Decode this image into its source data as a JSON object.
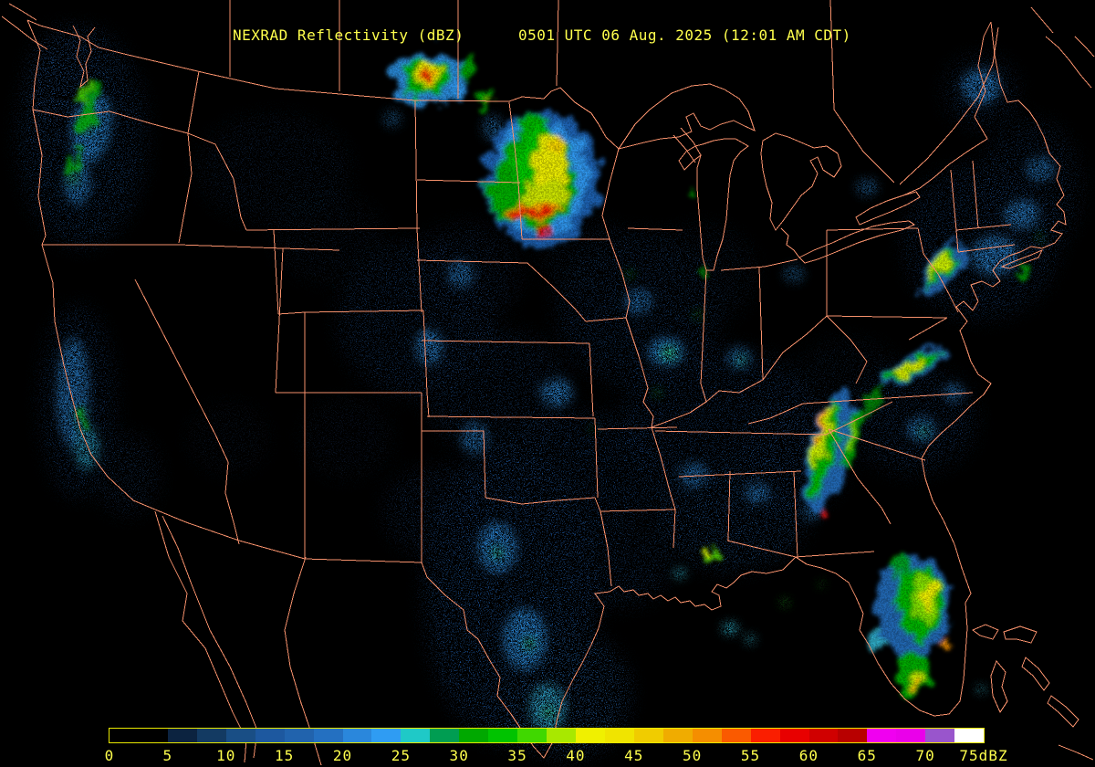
{
  "header": {
    "title": "NEXRAD Reflectivity (dBZ)",
    "timestamp": "0501 UTC 06 Aug. 2025 (12:01 AM CDT)"
  },
  "colorbar": {
    "unit": "dBZ",
    "range_min": 0,
    "range_max": 75,
    "cell_step_dbz": 2.5,
    "ticks": [
      "0",
      "5",
      "10",
      "15",
      "20",
      "25",
      "30",
      "35",
      "40",
      "45",
      "50",
      "55",
      "60",
      "65",
      "70",
      "75dBZ"
    ],
    "cells": [
      "#000000",
      "#000000",
      "#0c2340",
      "#133a62",
      "#194e85",
      "#1d589f",
      "#2163ad",
      "#2470c1",
      "#2a87dc",
      "#2f9cf3",
      "#1fc9c7",
      "#009d52",
      "#00a800",
      "#00c300",
      "#40d800",
      "#a8e800",
      "#f0f000",
      "#f0e400",
      "#f0cc00",
      "#f0ac00",
      "#f58e00",
      "#fa5a00",
      "#fa1e00",
      "#e80000",
      "#d00000",
      "#b80000",
      "#f000f0",
      "#ea00ea",
      "#9955cc",
      "#ffffff"
    ],
    "border_color": "#e8e800",
    "label_color": "#ffff4d"
  },
  "map": {
    "background": "#000000",
    "boundary_color": "#f5906b",
    "echoes": {
      "format": "[cx, cy, rx, ry, rotate_deg, color, opacity]",
      "fields": [
        [
          90,
          150,
          70,
          120,
          0,
          "#1d5aa4",
          0.8
        ],
        [
          70,
          90,
          40,
          60,
          0,
          "#2470c1",
          0.55
        ],
        [
          85,
          440,
          40,
          105,
          0,
          "#1d5aa4",
          0.75
        ],
        [
          140,
          520,
          35,
          45,
          0,
          "#1a508c",
          0.6
        ],
        [
          300,
          185,
          85,
          60,
          0,
          "#16406e",
          0.55
        ],
        [
          360,
          260,
          60,
          50,
          0,
          "#16406e",
          0.45
        ],
        [
          455,
          350,
          85,
          85,
          0,
          "#1d5aa4",
          0.65
        ],
        [
          510,
          300,
          60,
          55,
          0,
          "#1d5aa4",
          0.5
        ],
        [
          545,
          430,
          80,
          70,
          0,
          "#1d5aa4",
          0.6
        ],
        [
          560,
          650,
          95,
          165,
          0,
          "#1f63b4",
          0.85
        ],
        [
          620,
          760,
          70,
          70,
          0,
          "#2470c1",
          0.8
        ],
        [
          480,
          560,
          60,
          50,
          0,
          "#1d5aa4",
          0.55
        ],
        [
          640,
          520,
          85,
          70,
          0,
          "#1d5aa4",
          0.7
        ],
        [
          700,
          340,
          90,
          85,
          0,
          "#1d5aa4",
          0.7
        ],
        [
          640,
          280,
          50,
          45,
          0,
          "#16406e",
          0.5
        ],
        [
          790,
          460,
          110,
          80,
          0,
          "#1d5aa4",
          0.7
        ],
        [
          800,
          565,
          85,
          60,
          0,
          "#2065b0",
          0.8
        ],
        [
          870,
          500,
          60,
          60,
          0,
          "#1d5aa4",
          0.6
        ],
        [
          680,
          620,
          55,
          45,
          0,
          "#1d5aa4",
          0.6
        ],
        [
          770,
          300,
          60,
          55,
          0,
          "#16406e",
          0.5
        ],
        [
          930,
          420,
          60,
          50,
          0,
          "#16406e",
          0.5
        ],
        [
          1000,
          460,
          70,
          60,
          0,
          "#1d5aa4",
          0.65
        ],
        [
          1075,
          265,
          85,
          85,
          0,
          "#1d5aa4",
          0.7
        ],
        [
          1130,
          205,
          55,
          75,
          0,
          "#1d5aa4",
          0.6
        ],
        [
          1075,
          100,
          40,
          40,
          0,
          "#1d5aa4",
          0.65
        ],
        [
          380,
          480,
          50,
          45,
          0,
          "#16406e",
          0.4
        ],
        [
          250,
          480,
          45,
          40,
          0,
          "#16406e",
          0.35
        ]
      ],
      "clumps": [
        [
          100,
          140,
          22,
          40,
          10,
          "#2e93e8",
          0.9
        ],
        [
          85,
          200,
          15,
          25,
          0,
          "#2e93e8",
          0.8
        ],
        [
          80,
          430,
          18,
          60,
          0,
          "#2e93e8",
          0.8
        ],
        [
          95,
          490,
          14,
          25,
          0,
          "#35c0e8",
          0.7
        ],
        [
          470,
          380,
          16,
          20,
          0,
          "#2e93e8",
          0.8
        ],
        [
          505,
          300,
          15,
          15,
          0,
          "#2e93e8",
          0.7
        ],
        [
          610,
          430,
          18,
          16,
          0,
          "#2e93e8",
          0.8
        ],
        [
          520,
          480,
          15,
          18,
          0,
          "#2e93e8",
          0.7
        ],
        [
          545,
          600,
          22,
          28,
          0,
          "#2e93e8",
          0.85
        ],
        [
          575,
          700,
          24,
          34,
          0,
          "#2e93e8",
          0.9
        ],
        [
          600,
          775,
          20,
          26,
          0,
          "#35c0e8",
          0.85
        ],
        [
          730,
          385,
          20,
          16,
          0,
          "#2e93e8",
          0.9
        ],
        [
          733,
          388,
          10,
          8,
          0,
          "#38d0f0",
          0.9
        ],
        [
          810,
          392,
          13,
          12,
          0,
          "#2e93e8",
          0.8
        ],
        [
          700,
          330,
          16,
          14,
          0,
          "#2e93e8",
          0.7
        ],
        [
          760,
          520,
          16,
          14,
          0,
          "#2e93e8",
          0.7
        ],
        [
          830,
          540,
          14,
          12,
          0,
          "#2e93e8",
          0.7
        ],
        [
          890,
          560,
          12,
          10,
          0,
          "#2e93e8",
          0.6
        ],
        [
          1010,
          470,
          16,
          14,
          0,
          "#2e93e8",
          0.8
        ],
        [
          1045,
          430,
          12,
          10,
          0,
          "#2e93e8",
          0.7
        ],
        [
          1090,
          280,
          26,
          22,
          0,
          "#2e93e8",
          0.85
        ],
        [
          1120,
          235,
          20,
          16,
          0,
          "#2e93e8",
          0.8
        ],
        [
          1140,
          185,
          16,
          14,
          0,
          "#2e93e8",
          0.7
        ],
        [
          1075,
          95,
          22,
          20,
          0,
          "#2e93e8",
          0.85
        ],
        [
          950,
          205,
          12,
          10,
          0,
          "#2e93e8",
          0.6
        ],
        [
          870,
          300,
          12,
          10,
          0,
          "#2e93e8",
          0.5
        ],
        [
          800,
          688,
          9,
          7,
          0,
          "#38d0f0",
          0.9
        ],
        [
          822,
          700,
          6,
          5,
          0,
          "#38d0f0",
          0.85
        ],
        [
          1075,
          755,
          5,
          4,
          0,
          "#38d0f0",
          0.9
        ],
        [
          745,
          628,
          7,
          6,
          0,
          "#38d0f0",
          0.8
        ],
        [
          540,
          140,
          12,
          14,
          0,
          "#2e93e8",
          0.6
        ],
        [
          430,
          130,
          10,
          10,
          0,
          "#2e93e8",
          0.5
        ]
      ],
      "specks": [
        [
          95,
          135,
          6,
          10,
          0,
          "#20c020",
          0.9
        ],
        [
          80,
          195,
          5,
          7,
          0,
          "#20c020",
          0.8
        ],
        [
          88,
          455,
          5,
          9,
          0,
          "#20c020",
          0.8
        ],
        [
          733,
          386,
          6,
          5,
          0,
          "#20c020",
          0.9
        ],
        [
          812,
          394,
          4,
          4,
          0,
          "#20c020",
          0.8
        ],
        [
          1012,
          472,
          5,
          4,
          0,
          "#20c020",
          0.8
        ],
        [
          545,
          605,
          5,
          6,
          0,
          "#20c020",
          0.8
        ],
        [
          580,
          705,
          6,
          6,
          0,
          "#20c020",
          0.8
        ],
        [
          601,
          780,
          5,
          5,
          0,
          "#20c020",
          0.8
        ],
        [
          765,
          345,
          4,
          4,
          0,
          "#20c020",
          0.8
        ],
        [
          860,
          660,
          4,
          4,
          0,
          "#28cc28",
          0.9
        ],
        [
          900,
          640,
          3,
          3,
          0,
          "#28cc28",
          0.8
        ],
        [
          690,
          300,
          4,
          4,
          0,
          "#20c020",
          0.7
        ],
        [
          720,
          430,
          4,
          4,
          0,
          "#20c020",
          0.7
        ],
        [
          650,
          470,
          3,
          3,
          0,
          "#20c020",
          0.7
        ],
        [
          1140,
          260,
          3,
          5,
          0,
          "#20c020",
          0.7
        ]
      ],
      "cores": [
        [
          594,
          196,
          64,
          74,
          0,
          "#1f63b4",
          0.95
        ],
        [
          592,
          195,
          52,
          64,
          0,
          "#2e93e8",
          1
        ],
        [
          560,
          208,
          26,
          36,
          0,
          "#00a800",
          1
        ],
        [
          590,
          196,
          42,
          56,
          0,
          "#00a800",
          1
        ],
        [
          585,
          140,
          18,
          16,
          0,
          "#00b000",
          1
        ],
        [
          594,
          188,
          30,
          48,
          0,
          "#00c300",
          1
        ],
        [
          604,
          185,
          20,
          40,
          0,
          "#e8e800",
          1
        ],
        [
          598,
          215,
          24,
          16,
          0,
          "#c8e000",
          1
        ],
        [
          609,
          160,
          7,
          12,
          0,
          "#f0d000",
          1
        ],
        [
          585,
          233,
          30,
          8,
          -6,
          "#f0a000",
          1
        ],
        [
          583,
          234,
          24,
          5,
          -6,
          "#e81800",
          1
        ],
        [
          568,
          238,
          10,
          4,
          10,
          "#e81800",
          1
        ],
        [
          597,
          251,
          5,
          9,
          0,
          "#d00000",
          1
        ],
        [
          470,
          86,
          40,
          30,
          0,
          "#2e93e8",
          0.9
        ],
        [
          466,
          84,
          26,
          21,
          0,
          "#00b000",
          1
        ],
        [
          469,
          80,
          11,
          12,
          0,
          "#e8e800",
          1
        ],
        [
          468,
          83,
          6,
          6,
          0,
          "#f09000",
          1
        ],
        [
          467,
          84,
          3,
          3,
          0,
          "#e00000",
          1
        ],
        [
          515,
          73,
          9,
          10,
          0,
          "#00a800",
          0.9
        ],
        [
          532,
          110,
          9,
          8,
          0,
          "#00a800",
          0.9
        ],
        [
          536,
          112,
          4,
          4,
          0,
          "#b0e000",
          0.9
        ],
        [
          500,
          95,
          7,
          7,
          0,
          "#2e93e8",
          0.8
        ],
        [
          908,
          495,
          22,
          68,
          14,
          "#2470c1",
          0.9
        ],
        [
          904,
          490,
          13,
          56,
          14,
          "#00b000",
          1
        ],
        [
          901,
          477,
          6,
          36,
          14,
          "#c8e800",
          1
        ],
        [
          900,
          468,
          3,
          20,
          14,
          "#f0a000",
          1
        ],
        [
          907,
          563,
          4,
          6,
          0,
          "#e01010",
          1
        ],
        [
          934,
          482,
          9,
          34,
          12,
          "#00a800",
          0.95
        ],
        [
          933,
          476,
          4,
          18,
          12,
          "#90e000",
          0.9
        ],
        [
          955,
          440,
          8,
          18,
          20,
          "#00a800",
          0.7
        ],
        [
          1000,
          665,
          42,
          58,
          0,
          "#2470c1",
          0.9
        ],
        [
          1008,
          660,
          26,
          40,
          0,
          "#00b000",
          1
        ],
        [
          1014,
          657,
          14,
          26,
          0,
          "#80dc00",
          1
        ],
        [
          1017,
          653,
          8,
          15,
          0,
          "#e8e800",
          1
        ],
        [
          1002,
          738,
          17,
          27,
          0,
          "#00a800",
          1
        ],
        [
          1004,
          744,
          6,
          9,
          0,
          "#c8e800",
          1
        ],
        [
          1006,
          750,
          3,
          4,
          0,
          "#f0a000",
          1
        ],
        [
          1038,
          706,
          4,
          4,
          0,
          "#f09000",
          1
        ],
        [
          985,
          620,
          10,
          12,
          0,
          "#00a800",
          0.8
        ],
        [
          960,
          700,
          7,
          8,
          0,
          "#38d0f0",
          0.8
        ],
        [
          1032,
          296,
          16,
          36,
          38,
          "#2470c1",
          0.85
        ],
        [
          1030,
          294,
          9,
          28,
          38,
          "#00b000",
          1
        ],
        [
          1028,
          291,
          4,
          16,
          38,
          "#c8e800",
          1
        ],
        [
          1000,
          404,
          12,
          42,
          63,
          "#2470c1",
          0.85
        ],
        [
          1000,
          403,
          7,
          34,
          63,
          "#00b000",
          1
        ],
        [
          999,
          402,
          3,
          20,
          63,
          "#d8e800",
          1
        ],
        [
          97,
          120,
          10,
          28,
          8,
          "#00a800",
          0.85
        ],
        [
          93,
          100,
          5,
          12,
          8,
          "#50d000",
          0.8
        ],
        [
          78,
          180,
          6,
          14,
          0,
          "#00a800",
          0.8
        ],
        [
          90,
          460,
          5,
          10,
          0,
          "#00a800",
          0.7
        ],
        [
          777,
          606,
          7,
          10,
          0,
          "#50d000",
          1
        ],
        [
          777,
          603,
          4,
          5,
          0,
          "#e8e800",
          1
        ],
        [
          760,
          215,
          5,
          6,
          0,
          "#00a800",
          0.8
        ],
        [
          772,
          300,
          4,
          5,
          0,
          "#00a800",
          0.7
        ],
        [
          1120,
          300,
          4,
          6,
          30,
          "#00b000",
          0.8
        ]
      ]
    }
  }
}
